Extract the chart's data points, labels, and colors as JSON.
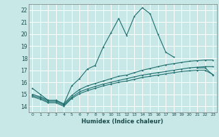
{
  "xlabel": "Humidex (Indice chaleur)",
  "xlim": [
    -0.5,
    23.5
  ],
  "ylim": [
    13.5,
    22.5
  ],
  "xticks": [
    0,
    1,
    2,
    3,
    4,
    5,
    6,
    7,
    8,
    9,
    10,
    11,
    12,
    13,
    14,
    15,
    16,
    17,
    18,
    19,
    20,
    21,
    22,
    23
  ],
  "yticks": [
    14,
    15,
    16,
    17,
    18,
    19,
    20,
    21,
    22
  ],
  "bg_color": "#c8e8e8",
  "grid_color": "#ffffff",
  "line_color": "#1a6b6b",
  "lines": [
    {
      "x": [
        0,
        1,
        2,
        3,
        4,
        5,
        6,
        7,
        8,
        9,
        10,
        11,
        12,
        13,
        14,
        15,
        16,
        17,
        18,
        19,
        20,
        21,
        22,
        23
      ],
      "y": [
        15.5,
        15.0,
        14.5,
        14.5,
        14.2,
        15.7,
        16.3,
        17.1,
        17.4,
        18.9,
        20.1,
        21.3,
        19.9,
        21.5,
        22.2,
        21.7,
        20.0,
        18.5,
        18.1,
        null,
        null,
        17.2,
        17.2,
        16.6
      ]
    },
    {
      "x": [
        0,
        1,
        2,
        3,
        4,
        5,
        6,
        7,
        8,
        9,
        10,
        11,
        12,
        13,
        14,
        15,
        16,
        17,
        18,
        19,
        20,
        21,
        22,
        23
      ],
      "y": [
        15.0,
        14.8,
        14.5,
        14.5,
        14.2,
        14.9,
        15.4,
        15.7,
        15.9,
        16.1,
        16.3,
        16.5,
        16.6,
        16.8,
        17.0,
        17.15,
        17.3,
        17.45,
        17.55,
        17.65,
        17.75,
        17.8,
        17.85,
        17.85
      ]
    },
    {
      "x": [
        0,
        1,
        2,
        3,
        4,
        5,
        6,
        7,
        8,
        9,
        10,
        11,
        12,
        13,
        14,
        15,
        16,
        17,
        18,
        19,
        20,
        21,
        22,
        23
      ],
      "y": [
        14.9,
        14.7,
        14.4,
        14.4,
        14.1,
        14.75,
        15.2,
        15.45,
        15.65,
        15.85,
        16.0,
        16.15,
        16.3,
        16.45,
        16.6,
        16.7,
        16.8,
        16.9,
        17.0,
        17.1,
        17.2,
        17.25,
        17.3,
        17.3
      ]
    },
    {
      "x": [
        0,
        1,
        2,
        3,
        4,
        5,
        6,
        7,
        8,
        9,
        10,
        11,
        12,
        13,
        14,
        15,
        16,
        17,
        18,
        19,
        20,
        21,
        22,
        23
      ],
      "y": [
        14.8,
        14.6,
        14.3,
        14.3,
        14.0,
        14.65,
        15.05,
        15.3,
        15.5,
        15.7,
        15.85,
        16.0,
        16.1,
        16.25,
        16.4,
        16.5,
        16.6,
        16.7,
        16.8,
        16.9,
        16.95,
        17.0,
        17.0,
        16.65
      ]
    }
  ]
}
